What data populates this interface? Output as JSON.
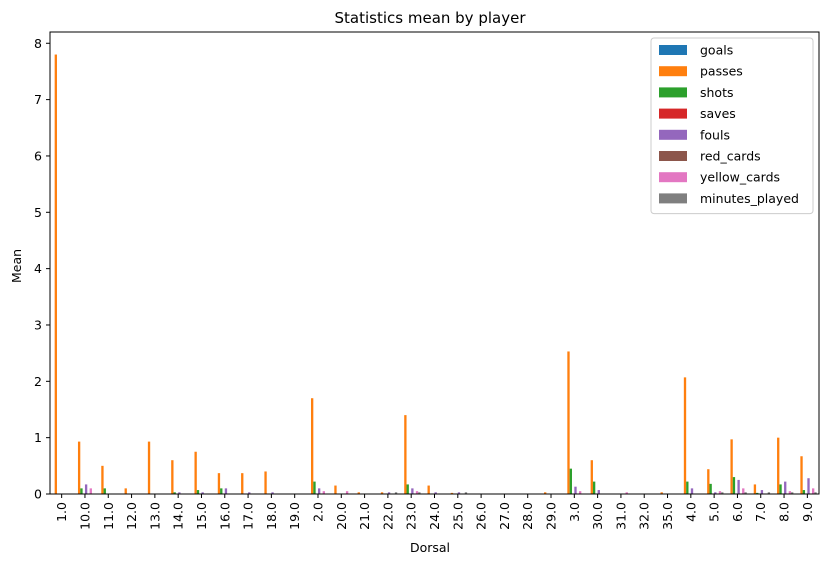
{
  "chart_data": {
    "type": "bar",
    "title": "Statistics mean by player",
    "xlabel": "Dorsal",
    "ylabel": "Mean",
    "ylim": [
      0,
      8.2
    ],
    "yticks": [
      0,
      1,
      2,
      3,
      4,
      5,
      6,
      7,
      8
    ],
    "grid": false,
    "legend_position": "top-right",
    "categories": [
      "1.0",
      "10.0",
      "11.0",
      "12.0",
      "13.0",
      "14.0",
      "15.0",
      "16.0",
      "17.0",
      "18.0",
      "19.0",
      "2.0",
      "20.0",
      "21.0",
      "22.0",
      "23.0",
      "24.0",
      "25.0",
      "26.0",
      "27.0",
      "28.0",
      "29.0",
      "3.0",
      "30.0",
      "31.0",
      "32.0",
      "35.0",
      "4.0",
      "5.0",
      "6.0",
      "7.0",
      "8.0",
      "9.0"
    ],
    "series": [
      {
        "name": "goals",
        "color": "#1f77b4",
        "values": [
          0,
          0,
          0,
          0,
          0,
          0,
          0,
          0,
          0,
          0,
          0,
          0,
          0,
          0,
          0,
          0,
          0,
          0,
          0,
          0,
          0,
          0,
          0,
          0,
          0,
          0,
          0,
          0,
          0,
          0,
          0,
          0,
          0
        ]
      },
      {
        "name": "passes",
        "color": "#ff7f0e",
        "values": [
          7.8,
          0.93,
          0.5,
          0.1,
          0.93,
          0.6,
          0.75,
          0.37,
          0.37,
          0.4,
          0,
          1.7,
          0.15,
          0.03,
          0.03,
          1.4,
          0.15,
          0.02,
          0,
          0,
          0,
          0.03,
          2.53,
          0.6,
          0,
          0,
          0.03,
          2.07,
          0.44,
          0.97,
          0.17,
          1.0,
          0.67
        ]
      },
      {
        "name": "shots",
        "color": "#2ca02c",
        "values": [
          0,
          0.1,
          0.1,
          0,
          0,
          0.03,
          0.07,
          0.1,
          0,
          0,
          0,
          0.22,
          0,
          0,
          0,
          0.17,
          0,
          0,
          0,
          0,
          0,
          0,
          0.45,
          0.22,
          0,
          0,
          0,
          0.22,
          0.18,
          0.3,
          0.02,
          0.17,
          0.07
        ]
      },
      {
        "name": "saves",
        "color": "#d62728",
        "values": [
          0,
          0,
          0,
          0,
          0,
          0,
          0,
          0,
          0,
          0,
          0,
          0,
          0,
          0,
          0,
          0,
          0,
          0,
          0,
          0,
          0,
          0,
          0,
          0,
          0,
          0,
          0,
          0,
          0,
          0,
          0,
          0,
          0
        ]
      },
      {
        "name": "fouls",
        "color": "#9467bd",
        "values": [
          0,
          0.17,
          0,
          0,
          0,
          0.03,
          0.03,
          0.1,
          0.03,
          0.03,
          0,
          0.1,
          0,
          0,
          0.03,
          0.1,
          0.03,
          0.03,
          0,
          0,
          0,
          0,
          0.13,
          0.07,
          0,
          0,
          0,
          0.1,
          0.03,
          0.25,
          0.07,
          0.22,
          0.28
        ]
      },
      {
        "name": "red_cards",
        "color": "#8c564b",
        "values": [
          0,
          0,
          0,
          0,
          0,
          0,
          0,
          0,
          0,
          0,
          0,
          0,
          0,
          0,
          0,
          0,
          0,
          0,
          0,
          0,
          0,
          0,
          0,
          0,
          0,
          0,
          0,
          0,
          0,
          0,
          0,
          0,
          0
        ]
      },
      {
        "name": "yellow_cards",
        "color": "#e377c2",
        "values": [
          0,
          0.1,
          0,
          0,
          0,
          0,
          0,
          0,
          0,
          0,
          0,
          0.05,
          0.05,
          0,
          0,
          0.05,
          0,
          0,
          0,
          0,
          0,
          0,
          0.05,
          0,
          0.03,
          0,
          0,
          0,
          0.05,
          0.1,
          0,
          0.05,
          0.1
        ]
      },
      {
        "name": "minutes_played",
        "color": "#7f7f7f",
        "values": [
          0,
          0,
          0,
          0,
          0,
          0,
          0,
          0,
          0,
          0,
          0,
          0,
          0,
          0,
          0.03,
          0.03,
          0,
          0.03,
          0,
          0,
          0,
          0,
          0,
          0,
          0,
          0,
          0,
          0,
          0.03,
          0.03,
          0.03,
          0.03,
          0.03
        ]
      }
    ]
  }
}
